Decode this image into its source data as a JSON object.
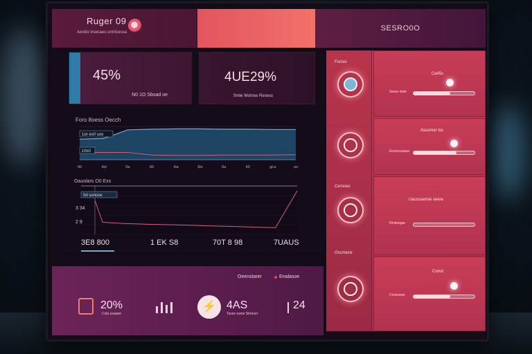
{
  "header": {
    "title": "Ruger 09",
    "subtitle": "Aerdro trsecaes unrrtcessa",
    "right_label": "SESRO0O"
  },
  "kpis": [
    {
      "value": "45%",
      "caption": "N0 1O Sbsad oe"
    },
    {
      "value": "4UE29%",
      "caption": "Smie Wotnse Resess"
    }
  ],
  "chart_1": {
    "title": "Foro 8oess Oecch",
    "tags": [
      "1or es0 soo",
      "10s0"
    ],
    "x_ticks": [
      "00",
      "Hd",
      "0a",
      "60",
      "Ha",
      "6lo",
      "0a",
      "40",
      "gLe",
      "oo"
    ]
  },
  "chart_2": {
    "title": "Oauolars O0 Exs",
    "tag": "0d sorioox",
    "y_ticks": [
      "3 34",
      "2 9"
    ]
  },
  "chart_data": [
    {
      "type": "area",
      "title": "Foro 8oess Oecch",
      "xlabel": "",
      "ylabel": "",
      "x": [
        "00",
        "Hd",
        "0a",
        "60",
        "Ha",
        "6lo",
        "0a",
        "40",
        "gLe",
        "oo"
      ],
      "series": [
        {
          "values": [
            62,
            64,
            90,
            92,
            93,
            93,
            92,
            92,
            91,
            91
          ]
        },
        {
          "values": [
            22,
            22,
            22,
            14,
            13,
            13,
            14,
            14,
            14,
            15
          ]
        }
      ],
      "ylim": [
        0,
        100
      ],
      "grid": true
    },
    {
      "type": "line",
      "title": "Oauolars O0 Exs",
      "xlabel": "",
      "ylabel": "",
      "x": [
        0,
        1,
        2,
        3,
        4,
        5,
        6,
        7,
        8,
        9,
        10
      ],
      "series": [
        {
          "values": [
            3.4,
            2.5,
            2.45,
            2.42,
            2.4,
            2.38,
            2.35,
            2.33,
            2.3,
            2.28,
            3.8
          ]
        }
      ],
      "ylim": [
        2.0,
        4.0
      ],
      "grid": true
    }
  ],
  "stats": [
    "3E8 800",
    "1 EK S8",
    "70T 8 98",
    "7UAUS"
  ],
  "right_panel": {
    "rows": [
      {
        "label": "Fsrsss",
        "card_label": "Ca45s",
        "slider_caption": "Seeer rtote",
        "level": 0.6
      },
      {
        "label": "",
        "card_label": "Asusmer tss",
        "slider_caption": "Ersosceaaue",
        "level": 0.7
      },
      {
        "label": "Cernoes",
        "card_label": "Uacossernie seere",
        "slider_caption": "Rmteegae",
        "level": 0.0
      },
      {
        "label": "Oscmiore",
        "card_label": "Comd",
        "slider_caption": "Cmooewe",
        "level": 0.6
      }
    ]
  },
  "bottom_panel": {
    "label": "Oeenstarer",
    "label_2": "Enalasoe",
    "metrics": [
      {
        "value": "20%",
        "caption": "Csta saaaee"
      },
      {
        "value": "4AS",
        "caption": "Taxse ssme Stmeorr"
      },
      {
        "value": "24",
        "caption": ""
      }
    ]
  },
  "colors": {
    "accent": "#e3545f",
    "panel_dark": "#150c19",
    "chart_line": "#7fa9c8",
    "chart_line_2": "#d8607a"
  }
}
